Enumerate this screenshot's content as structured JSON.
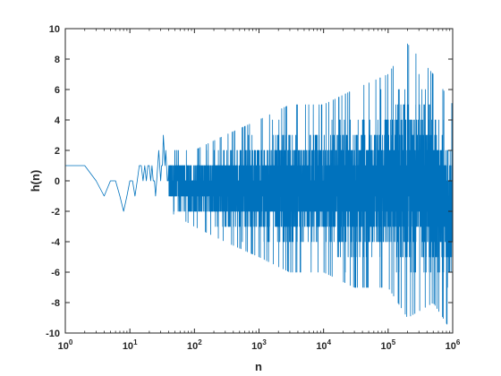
{
  "chart_data": {
    "type": "line",
    "title": "",
    "xlabel": "n",
    "ylabel": "h(n)",
    "xscale": "log",
    "xlim": [
      1,
      1000000
    ],
    "ylim": [
      -10,
      10
    ],
    "grid": false,
    "legend": "none",
    "x_ticks": [
      {
        "value": 1,
        "base": "10",
        "exp": "0"
      },
      {
        "value": 10,
        "base": "10",
        "exp": "1"
      },
      {
        "value": 100,
        "base": "10",
        "exp": "2"
      },
      {
        "value": 1000,
        "base": "10",
        "exp": "3"
      },
      {
        "value": 10000,
        "base": "10",
        "exp": "4"
      },
      {
        "value": 100000,
        "base": "10",
        "exp": "5"
      },
      {
        "value": 1000000,
        "base": "10",
        "exp": "6"
      }
    ],
    "y_ticks": [
      {
        "value": 10,
        "label": "10"
      },
      {
        "value": 8,
        "label": "8"
      },
      {
        "value": 6,
        "label": "6"
      },
      {
        "value": 4,
        "label": "4"
      },
      {
        "value": 2,
        "label": "2"
      },
      {
        "value": 0,
        "label": "0"
      },
      {
        "value": -2,
        "label": "-2"
      },
      {
        "value": -4,
        "label": "-4"
      },
      {
        "value": -6,
        "label": "-6"
      },
      {
        "value": -8,
        "label": "-8"
      },
      {
        "value": -10,
        "label": "-10"
      }
    ],
    "series": [
      {
        "color": "#0072BD",
        "x": [
          1,
          2,
          3,
          4,
          5,
          6,
          7,
          8,
          9,
          10,
          11,
          12,
          13,
          14,
          15,
          16,
          17,
          18,
          19,
          20,
          21,
          22,
          23,
          24,
          25,
          26,
          27,
          28,
          29,
          30,
          31,
          32,
          33,
          34,
          35,
          36,
          37,
          38,
          39,
          40
        ],
        "y": [
          1,
          1,
          0,
          -1,
          0,
          0,
          -1,
          -2,
          -1,
          0,
          0,
          -1,
          0,
          1,
          1,
          0,
          1,
          0,
          1,
          1,
          0,
          1,
          0,
          0,
          -1,
          0,
          1,
          2,
          1,
          0,
          1,
          1,
          3,
          2,
          1,
          2,
          1,
          0,
          0,
          1
        ]
      }
    ],
    "envelope": {
      "x": [
        40,
        100,
        300,
        1000,
        3000,
        10000,
        30000,
        100000,
        200000,
        500000,
        1000000
      ],
      "y_max": [
        2,
        2,
        3,
        4,
        5,
        5,
        6,
        7,
        9,
        7,
        5
      ],
      "y_min": [
        -2,
        -3,
        -4,
        -5,
        -6,
        -6,
        -7,
        -7,
        -9,
        -8,
        -10
      ]
    }
  }
}
